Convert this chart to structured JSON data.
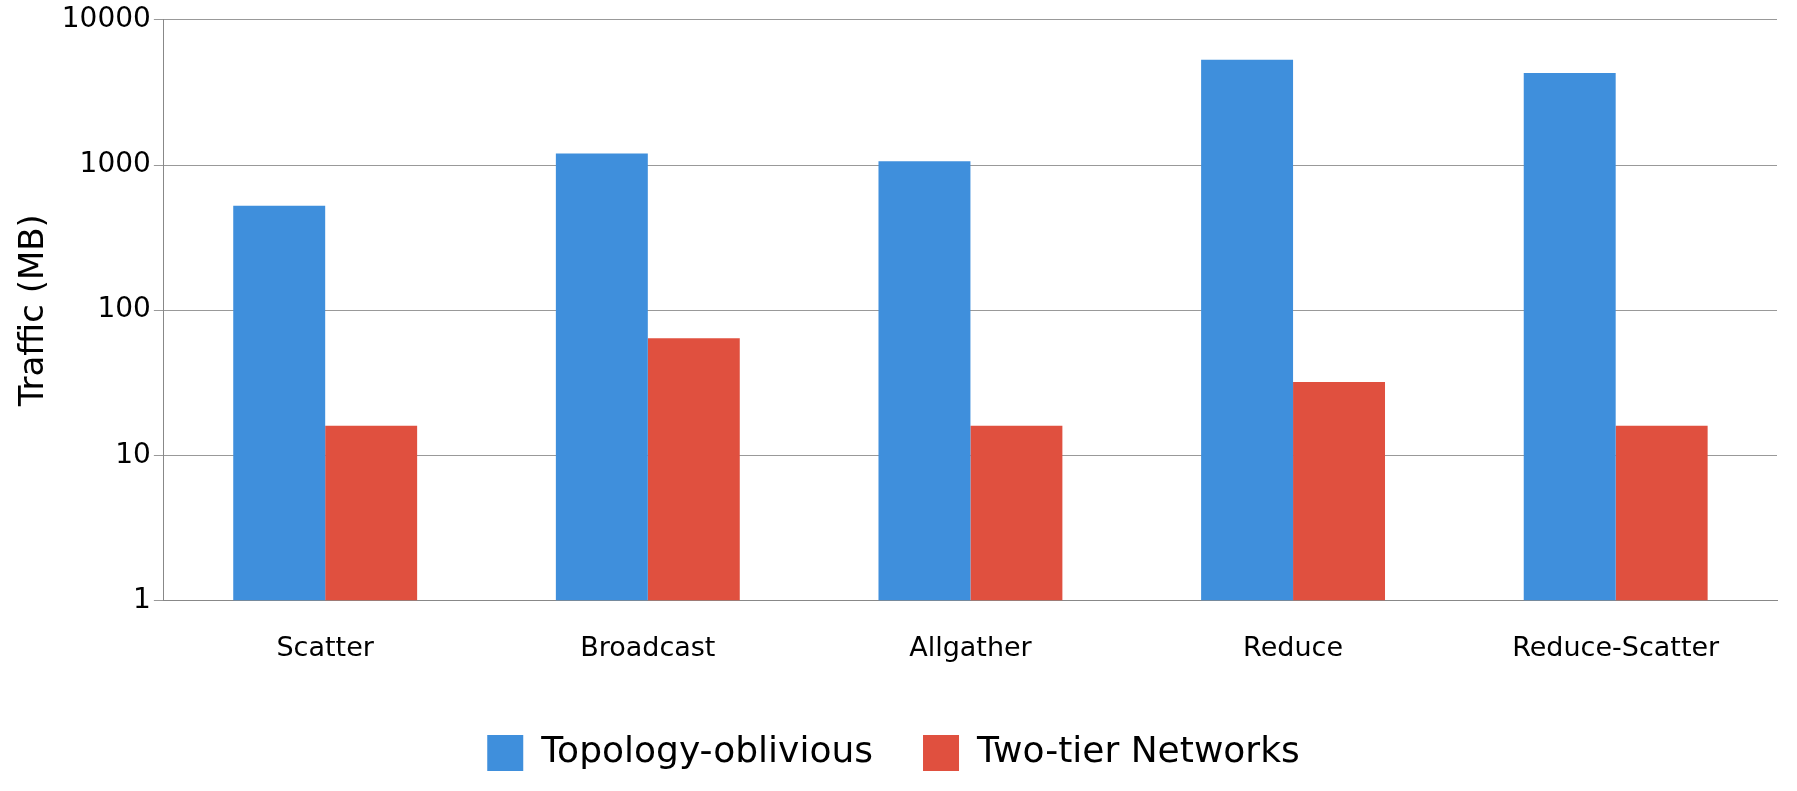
{
  "chart_data": {
    "type": "bar",
    "ylabel": "Traffic (MB)",
    "categories": [
      "Scatter",
      "Broadcast",
      "Allgather",
      "Reduce",
      "Reduce-Scatter"
    ],
    "series": [
      {
        "name": "Topology-oblivious",
        "color": "#3f8fdc",
        "values": [
          525,
          1200,
          1060,
          5300,
          4300
        ]
      },
      {
        "name": "Two-tier Networks",
        "color": "#e0503f",
        "values": [
          16,
          64,
          16,
          32,
          16
        ]
      }
    ],
    "log": "y",
    "ylim": [
      1,
      10000
    ],
    "yticks": [
      1,
      10,
      100,
      1000,
      10000
    ],
    "grid": "y",
    "legend": "bottom"
  }
}
